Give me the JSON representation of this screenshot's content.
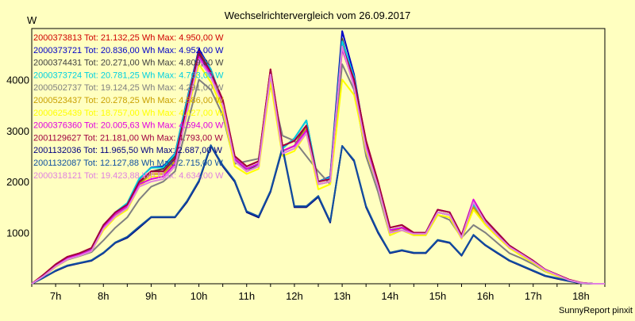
{
  "chart_data": {
    "type": "line",
    "title": "Wechselrichtervergleich vom 26.09.2017",
    "ylabel": "W",
    "xlabel": "",
    "footer": "SunnyReport pinxit",
    "ylim": [
      0,
      5000
    ],
    "xlim": [
      6.5,
      18.5
    ],
    "y_ticks": [
      1000,
      2000,
      3000,
      4000
    ],
    "x_ticks": [
      {
        "label": "7h",
        "value": 7
      },
      {
        "label": "8h",
        "value": 8
      },
      {
        "label": "9h",
        "value": 9
      },
      {
        "label": "10h",
        "value": 10
      },
      {
        "label": "11h",
        "value": 11
      },
      {
        "label": "12h",
        "value": 12
      },
      {
        "label": "13h",
        "value": 13
      },
      {
        "label": "14h",
        "value": 14
      },
      {
        "label": "15h",
        "value": 15
      },
      {
        "label": "16h",
        "value": 16
      },
      {
        "label": "17h",
        "value": 17
      },
      {
        "label": "18h",
        "value": 18
      }
    ],
    "grid": true,
    "legend_position": "top-left",
    "x": [
      6.5,
      6.75,
      7.0,
      7.25,
      7.5,
      7.75,
      8.0,
      8.25,
      8.5,
      8.75,
      9.0,
      9.25,
      9.5,
      9.75,
      10.0,
      10.25,
      10.5,
      10.75,
      11.0,
      11.25,
      11.5,
      11.75,
      12.0,
      12.25,
      12.5,
      12.75,
      13.0,
      13.25,
      13.5,
      13.75,
      14.0,
      14.25,
      14.5,
      14.75,
      15.0,
      15.25,
      15.5,
      15.75,
      16.0,
      16.25,
      16.5,
      16.75,
      17.0,
      17.25,
      17.5,
      17.75,
      18.0,
      18.25,
      18.5
    ],
    "series": [
      {
        "name": "2000373813 Tot: 21.132,25 Wh Max: 4.950,00 W",
        "color": "#d00000",
        "values": [
          0,
          180,
          380,
          530,
          600,
          700,
          1150,
          1400,
          1550,
          2000,
          2200,
          2200,
          2450,
          3500,
          4550,
          4150,
          3600,
          2500,
          2300,
          2400,
          4200,
          2700,
          2800,
          3100,
          2000,
          2050,
          4700,
          4000,
          2800,
          2000,
          1100,
          1150,
          1000,
          1000,
          1450,
          1400,
          950,
          1600,
          1250,
          1000,
          750,
          600,
          450,
          280,
          180,
          80,
          20,
          0,
          0
        ]
      },
      {
        "name": "2000373721 Tot: 20.836,00 Wh Max: 4.952,00 W",
        "color": "#0000c8",
        "values": [
          0,
          170,
          370,
          520,
          590,
          690,
          1140,
          1390,
          1560,
          2050,
          2280,
          2300,
          2550,
          3600,
          4600,
          4200,
          3550,
          2450,
          2250,
          2350,
          4150,
          2650,
          2850,
          3200,
          2000,
          2100,
          4950,
          4100,
          2700,
          1900,
          1050,
          1100,
          980,
          1000,
          1400,
          1350,
          920,
          1550,
          1200,
          950,
          720,
          580,
          430,
          270,
          170,
          70,
          15,
          0,
          0
        ]
      },
      {
        "name": "2000374431 Tot: 20.271,00 Wh Max: 4.809,00 W",
        "color": "#404040",
        "values": [
          0,
          160,
          350,
          500,
          570,
          660,
          1100,
          1350,
          1500,
          1950,
          2200,
          2250,
          2500,
          3500,
          4500,
          4100,
          3500,
          2450,
          2200,
          2350,
          4100,
          2600,
          2700,
          3100,
          1950,
          2000,
          4800,
          3950,
          2750,
          1950,
          1000,
          1100,
          980,
          980,
          1400,
          1350,
          900,
          1500,
          1200,
          950,
          700,
          560,
          420,
          260,
          160,
          70,
          15,
          0,
          0
        ]
      },
      {
        "name": "2000373724 Tot: 20.781,25 Wh Max: 4.763,00 W",
        "color": "#00d0e0",
        "values": [
          -50,
          150,
          370,
          520,
          590,
          680,
          1150,
          1400,
          1580,
          2060,
          2270,
          2280,
          2540,
          3580,
          4550,
          4200,
          3550,
          2450,
          2250,
          2350,
          4150,
          2650,
          2850,
          3200,
          2000,
          2080,
          4750,
          4050,
          2700,
          1900,
          1050,
          1100,
          980,
          1000,
          1400,
          1350,
          920,
          1550,
          1200,
          950,
          720,
          580,
          430,
          270,
          170,
          70,
          15,
          0,
          0
        ]
      },
      {
        "name": "2000502737 Tot: 19.124,25 Wh Max: 4.291,00 W",
        "color": "#808080",
        "values": [
          0,
          150,
          330,
          470,
          540,
          620,
          850,
          1100,
          1300,
          1650,
          1900,
          2000,
          2200,
          3100,
          4000,
          3800,
          3300,
          2350,
          2400,
          2450,
          3900,
          2900,
          2800,
          2500,
          2200,
          1950,
          4300,
          3800,
          2500,
          1800,
          950,
          1050,
          950,
          950,
          1350,
          1250,
          900,
          1150,
          1000,
          800,
          600,
          500,
          380,
          240,
          150,
          60,
          10,
          0,
          0
        ]
      },
      {
        "name": "2000523437 Tot: 20.278,25 Wh Max: 4.586,00 W",
        "color": "#c8a000",
        "values": [
          0,
          160,
          350,
          500,
          570,
          660,
          1100,
          1350,
          1500,
          1950,
          2150,
          2150,
          2400,
          3400,
          4400,
          4050,
          3500,
          2400,
          2200,
          2300,
          4050,
          2600,
          2700,
          3050,
          1950,
          2000,
          4600,
          3900,
          2700,
          1950,
          1000,
          1100,
          980,
          980,
          1400,
          1350,
          900,
          1500,
          1200,
          950,
          720,
          560,
          420,
          260,
          160,
          70,
          15,
          0,
          0
        ]
      },
      {
        "name": "2000625439 Tot: 18.757,00 Wh Max: 4.427,00 W",
        "color": "#ffff00",
        "values": [
          0,
          150,
          330,
          480,
          550,
          640,
          1050,
          1300,
          1450,
          1900,
          2100,
          2100,
          2350,
          3300,
          4300,
          3950,
          3400,
          2300,
          2150,
          2250,
          3950,
          2500,
          2600,
          2950,
          1850,
          1950,
          4000,
          3700,
          2600,
          1900,
          950,
          1050,
          950,
          950,
          1350,
          1300,
          880,
          1450,
          1150,
          920,
          700,
          550,
          410,
          250,
          150,
          60,
          10,
          0,
          0
        ]
      },
      {
        "name": "2000376360 Tot: 20.005,63 Wh Max: 4.594,00 W",
        "color": "#e000e0",
        "values": [
          0,
          160,
          350,
          500,
          570,
          660,
          1120,
          1370,
          1520,
          1950,
          2050,
          2100,
          2350,
          3400,
          4450,
          4100,
          3550,
          2450,
          2250,
          2350,
          4150,
          2600,
          2700,
          3000,
          2000,
          2050,
          4600,
          3900,
          2700,
          1950,
          1050,
          1100,
          1000,
          1000,
          1450,
          1400,
          950,
          1650,
          1250,
          1000,
          750,
          600,
          450,
          280,
          180,
          80,
          20,
          0,
          0
        ]
      },
      {
        "name": "2001129627 Tot: 21.181,00 Wh Max: 4.793,00 W",
        "color": "#a00040",
        "values": [
          0,
          180,
          380,
          530,
          600,
          700,
          1150,
          1400,
          1550,
          2000,
          2200,
          2200,
          2450,
          3500,
          4550,
          4150,
          3600,
          2500,
          2300,
          2400,
          4200,
          2700,
          2800,
          3100,
          2000,
          2050,
          4650,
          4000,
          2800,
          2000,
          1100,
          1150,
          1000,
          1000,
          1450,
          1400,
          950,
          1600,
          1250,
          1000,
          750,
          600,
          450,
          280,
          180,
          80,
          20,
          0,
          0
        ]
      },
      {
        "name": "2001132036 Tot: 11.965,50 Wh Max: 2.687,00 W",
        "color": "#000080",
        "values": [
          0,
          120,
          250,
          350,
          400,
          450,
          600,
          800,
          900,
          1100,
          1300,
          1300,
          1300,
          1600,
          2000,
          2700,
          2300,
          2000,
          1400,
          1300,
          1800,
          2650,
          1500,
          1500,
          1700,
          1200,
          2700,
          2400,
          1500,
          1000,
          600,
          650,
          600,
          600,
          850,
          800,
          550,
          950,
          750,
          600,
          450,
          350,
          250,
          150,
          100,
          50,
          10,
          0,
          0
        ]
      },
      {
        "name": "2001132087 Tot: 12.127,88 Wh Max: 2.715,00 W",
        "color": "#1050a0",
        "values": [
          0,
          120,
          260,
          360,
          410,
          460,
          610,
          810,
          920,
          1120,
          1310,
          1310,
          1310,
          1620,
          2020,
          2715,
          2320,
          2020,
          1420,
          1320,
          1820,
          2680,
          1520,
          1520,
          1720,
          1220,
          2700,
          2420,
          1520,
          1020,
          610,
          660,
          610,
          610,
          860,
          810,
          560,
          960,
          760,
          610,
          460,
          360,
          260,
          160,
          110,
          55,
          12,
          0,
          0
        ]
      },
      {
        "name": "2000318121 Tot: 19.423,88 Wh Max: 4.634,00 W",
        "color": "#e080e0",
        "values": [
          0,
          150,
          340,
          480,
          550,
          640,
          1080,
          1320,
          1480,
          1900,
          2000,
          2050,
          2300,
          3350,
          4400,
          4050,
          3500,
          2400,
          2200,
          2300,
          4100,
          2550,
          2650,
          2950,
          1950,
          2000,
          4650,
          3850,
          2650,
          1900,
          1000,
          1050,
          980,
          980,
          1400,
          1350,
          900,
          1600,
          1200,
          950,
          720,
          580,
          430,
          270,
          170,
          70,
          15,
          0,
          0
        ]
      }
    ]
  }
}
